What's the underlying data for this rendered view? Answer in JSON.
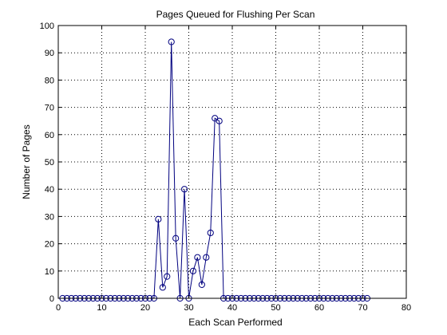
{
  "chart_data": {
    "type": "line",
    "title": "Pages Queued for Flushing Per Scan",
    "xlabel": "Each Scan Performed",
    "ylabel": "Number of Pages",
    "xlim": [
      0,
      80
    ],
    "ylim": [
      0,
      100
    ],
    "xticks": [
      0,
      10,
      20,
      30,
      40,
      50,
      60,
      70,
      80
    ],
    "yticks": [
      0,
      10,
      20,
      30,
      40,
      50,
      60,
      70,
      80,
      90,
      100
    ],
    "xtick_labels": [
      "0",
      "10",
      "20",
      "30",
      "40",
      "50",
      "60",
      "70",
      "80"
    ],
    "ytick_labels": [
      "0",
      "10",
      "20",
      "30",
      "40",
      "50",
      "60",
      "70",
      "80",
      "90",
      "100"
    ],
    "grid": true,
    "line_color": "#00007f",
    "marker": "circle",
    "x": [
      1,
      2,
      3,
      4,
      5,
      6,
      7,
      8,
      9,
      10,
      11,
      12,
      13,
      14,
      15,
      16,
      17,
      18,
      19,
      20,
      21,
      22,
      23,
      24,
      25,
      26,
      27,
      28,
      29,
      30,
      31,
      32,
      33,
      34,
      35,
      36,
      37,
      38,
      39,
      40,
      41,
      42,
      43,
      44,
      45,
      46,
      47,
      48,
      49,
      50,
      51,
      52,
      53,
      54,
      55,
      56,
      57,
      58,
      59,
      60,
      61,
      62,
      63,
      64,
      65,
      66,
      67,
      68,
      69,
      70,
      71
    ],
    "y": [
      0,
      0,
      0,
      0,
      0,
      0,
      0,
      0,
      0,
      0,
      0,
      0,
      0,
      0,
      0,
      0,
      0,
      0,
      0,
      0,
      0,
      0,
      29,
      4,
      8,
      94,
      22,
      0,
      40,
      0,
      10,
      15,
      5,
      15,
      24,
      66,
      65,
      0,
      0,
      0,
      0,
      0,
      0,
      0,
      0,
      0,
      0,
      0,
      0,
      0,
      0,
      0,
      0,
      0,
      0,
      0,
      0,
      0,
      0,
      0,
      0,
      0,
      0,
      0,
      0,
      0,
      0,
      0,
      0,
      0,
      0
    ]
  }
}
